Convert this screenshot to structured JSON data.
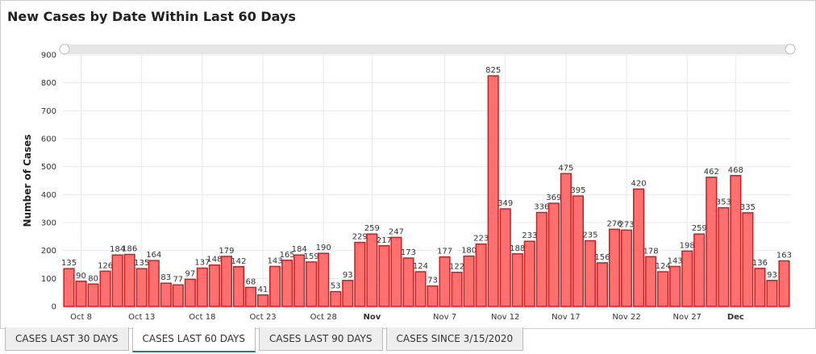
{
  "title": "New Cases by Date Within Last 60 Days",
  "chart_data": {
    "type": "bar",
    "ylabel": "Number of Cases",
    "color": "#ff7070",
    "edge_color": "#d41a1a",
    "categories": [
      null,
      "Oct 8",
      null,
      null,
      null,
      null,
      "Oct 13",
      null,
      null,
      null,
      null,
      "Oct 18",
      null,
      null,
      null,
      null,
      "Oct 23",
      null,
      null,
      null,
      null,
      "Oct 28",
      null,
      null,
      null,
      "Nov",
      null,
      null,
      null,
      null,
      null,
      "Nov 7",
      null,
      null,
      null,
      null,
      "Nov 12",
      null,
      null,
      null,
      null,
      "Nov 17",
      null,
      null,
      null,
      null,
      "Nov 22",
      null,
      null,
      null,
      null,
      "Nov 27",
      null,
      null,
      null,
      "Dec",
      null,
      null,
      null,
      null
    ],
    "values": [
      135,
      90,
      80,
      126,
      184,
      186,
      135,
      164,
      83,
      77,
      97,
      137,
      148,
      179,
      142,
      68,
      41,
      143,
      165,
      184,
      159,
      190,
      53,
      93,
      229,
      259,
      217,
      247,
      173,
      124,
      73,
      177,
      122,
      180,
      223,
      825,
      349,
      188,
      233,
      336,
      369,
      475,
      395,
      235,
      156,
      276,
      273,
      420,
      178,
      124,
      143,
      198,
      259,
      462,
      353,
      468,
      335,
      136,
      93,
      163
    ],
    "ylim": [
      0,
      900
    ],
    "yticks": [
      0,
      100,
      200,
      300,
      400,
      500,
      600,
      700,
      800,
      900
    ],
    "grid": true
  },
  "tabs": [
    "CASES LAST 30 DAYS",
    "CASES LAST 60 DAYS",
    "CASES LAST 90 DAYS",
    "CASES SINCE 3/15/2020"
  ],
  "active_tab": 1
}
